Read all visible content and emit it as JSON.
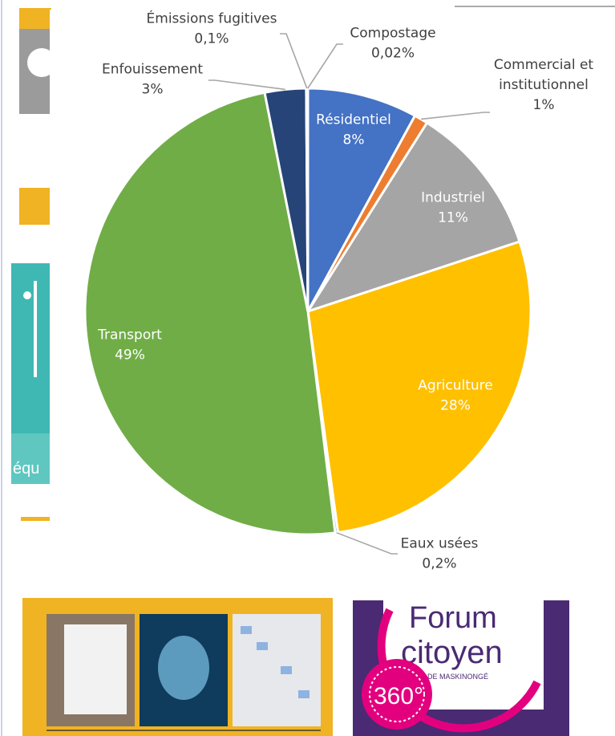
{
  "background": {
    "left_banner_text": "équ",
    "forum_logo": {
      "line1": "Forum",
      "line2": "citoyen",
      "subtitle": "MRC DE MASKINONGÉ",
      "badge": "360°"
    },
    "colors": {
      "gold": "#f0b323",
      "grey": "#9b9b9b",
      "teal": "#3fb8b4",
      "purple": "#4a2a73"
    }
  },
  "chart_data": {
    "type": "pie",
    "title": "",
    "legend": "none",
    "slices": [
      {
        "label": "Résidentiel",
        "value_label": "8%",
        "value": 8,
        "color": "#4472c4"
      },
      {
        "label": "Commercial et institutionnel",
        "label_lines": [
          "Commercial et",
          "institutionnel"
        ],
        "value_label": "1%",
        "value": 1,
        "color": "#ed7d31"
      },
      {
        "label": "Industriel",
        "value_label": "11%",
        "value": 11,
        "color": "#a5a5a5"
      },
      {
        "label": "Agriculture",
        "value_label": "28%",
        "value": 28,
        "color": "#ffc000"
      },
      {
        "label": "Eaux usées",
        "value_label": "0,2%",
        "value": 0.2,
        "color": "#5b9bd5"
      },
      {
        "label": "Transport",
        "value_label": "49%",
        "value": 49,
        "color": "#70ad47"
      },
      {
        "label": "Enfouissement",
        "value_label": "3%",
        "value": 3,
        "color": "#264478"
      },
      {
        "label": "Émissions fugitives",
        "value_label": "0,1%",
        "value": 0.1,
        "color": "#9e480e"
      },
      {
        "label": "Compostage",
        "value_label": "0,02%",
        "value": 0.02,
        "color": "#636363"
      }
    ]
  }
}
